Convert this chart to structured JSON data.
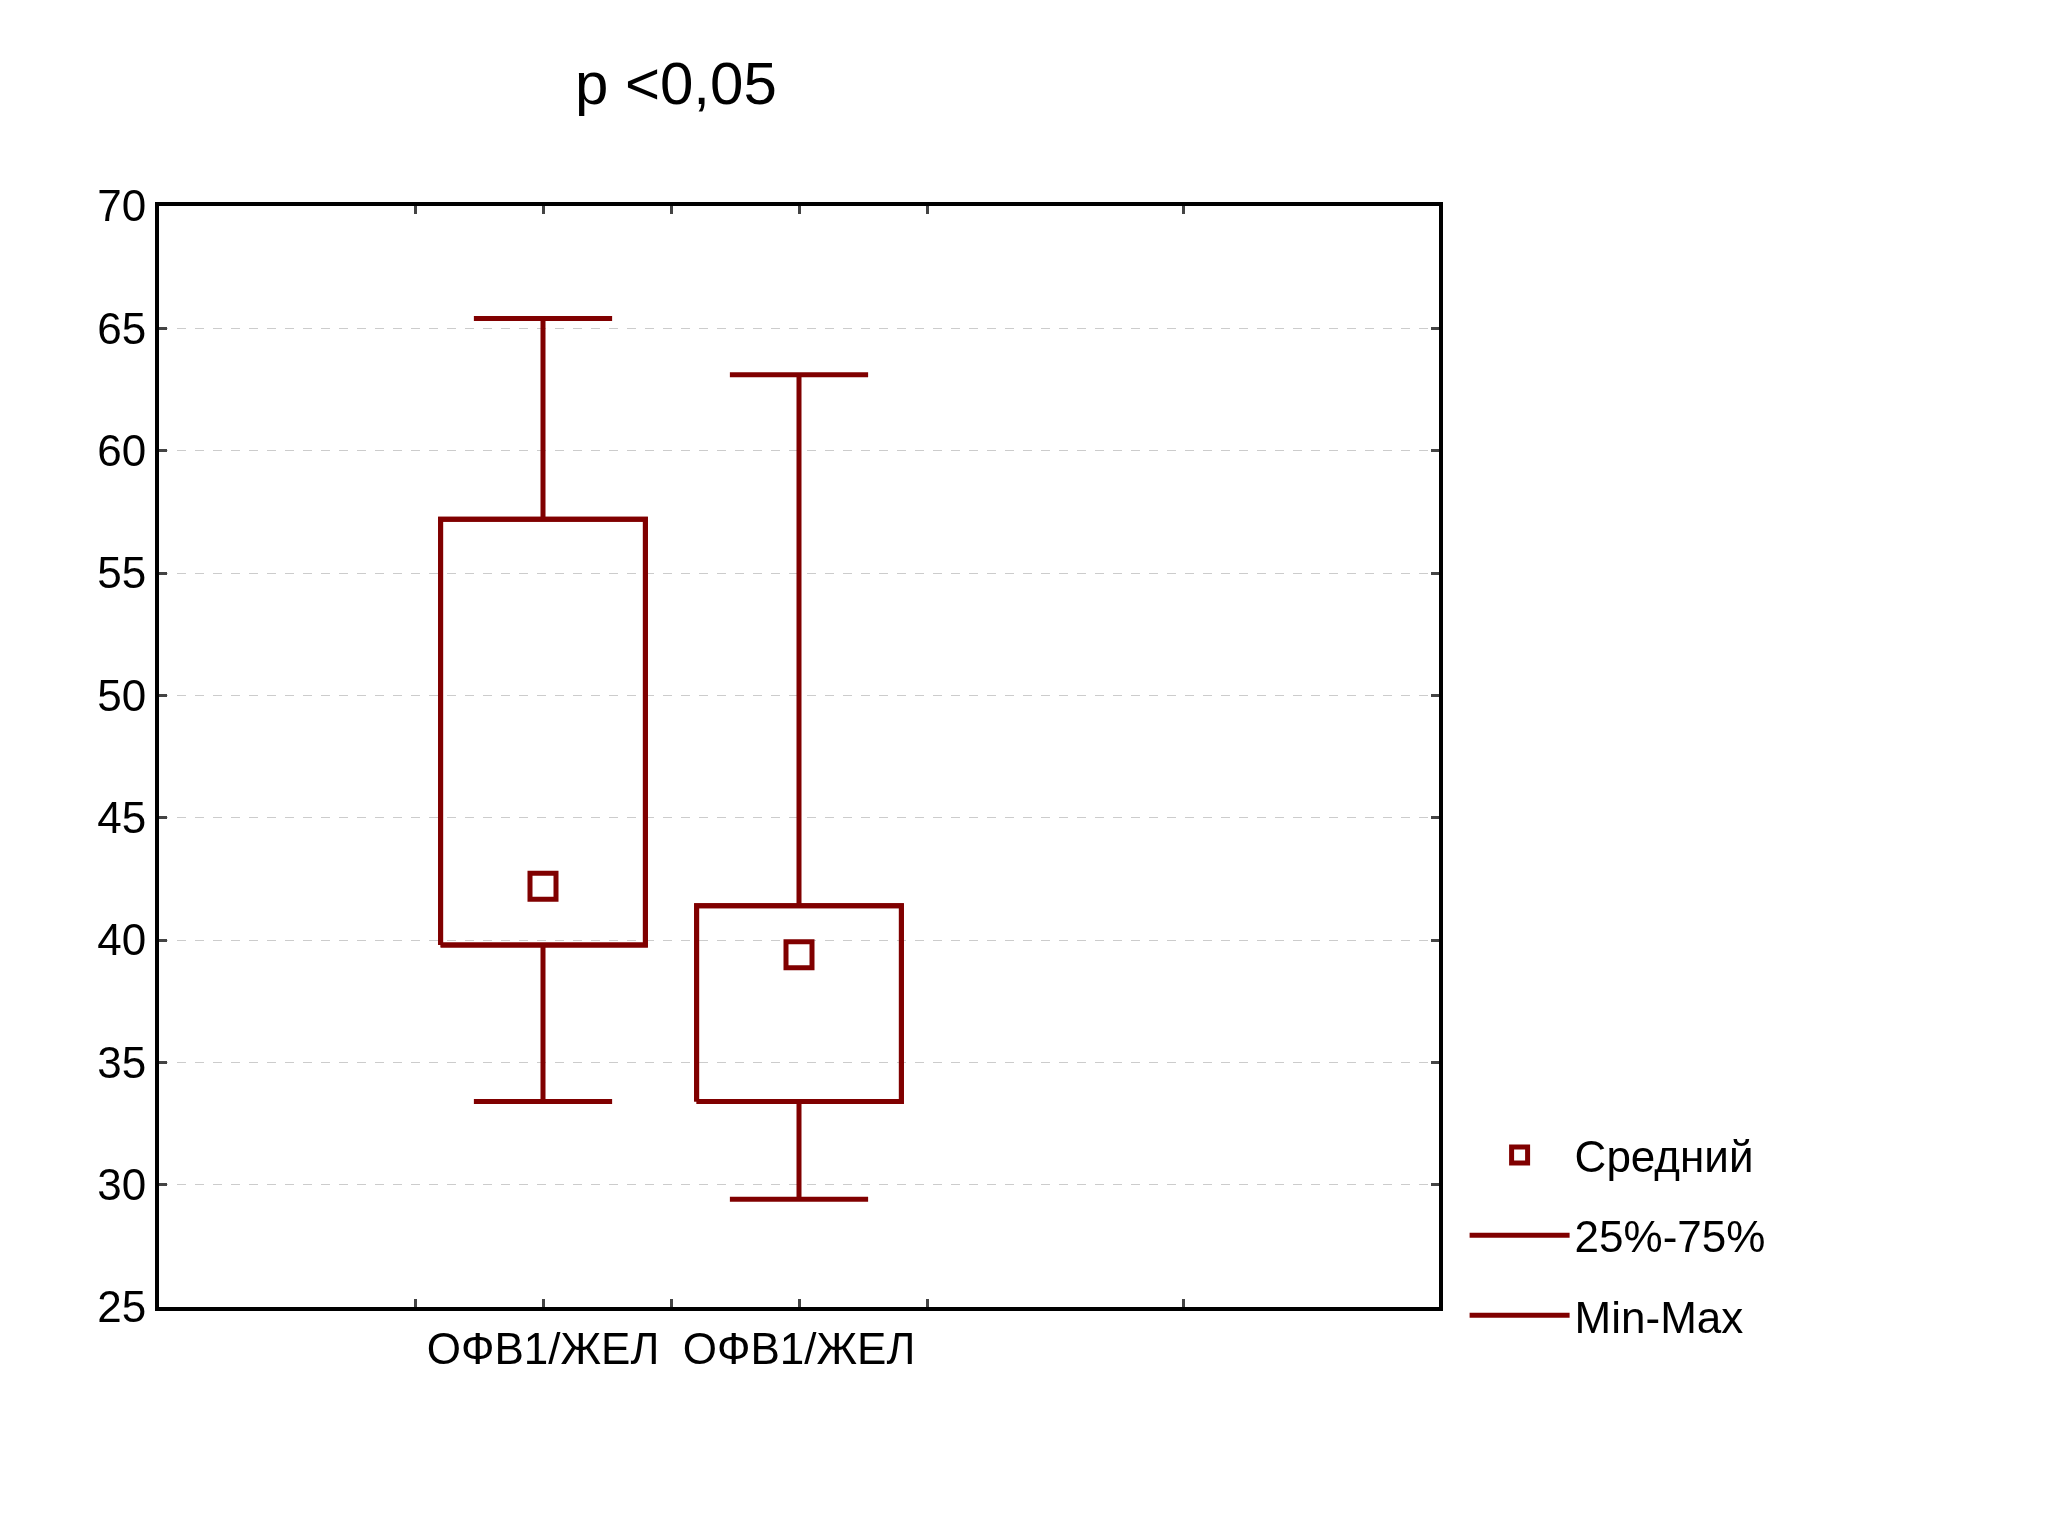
{
  "chart_data": {
    "type": "box",
    "title": "p <0,05",
    "categories": [
      null,
      "ОФВ1/ЖЕЛ",
      "ОФВ1/ЖЕЛ",
      null,
      null
    ],
    "series": [
      {
        "name": "Средний",
        "type": "scatter",
        "marker": "square",
        "color": "#800000",
        "values": [
          null,
          42.2,
          39.4,
          null,
          null
        ]
      },
      {
        "name": "25%-75%",
        "type": "box",
        "color": "#800000",
        "boxes": [
          null,
          {
            "q1": 39.8,
            "q3": 57.2
          },
          {
            "q1": 33.4,
            "q3": 41.4
          },
          null,
          null
        ]
      },
      {
        "name": "Min-Max",
        "type": "box",
        "color": "#800000",
        "boxes": [
          null,
          {
            "low": 33.4,
            "q1": 39.8,
            "q3": 57.2,
            "high": 65.4
          },
          {
            "low": 29.4,
            "q1": 33.4,
            "q3": 41.4,
            "high": 63.1
          },
          null,
          null
        ]
      }
    ],
    "ylim": [
      25,
      70
    ],
    "yticks": [
      25,
      30,
      35,
      40,
      45,
      50,
      55,
      60,
      65,
      70
    ],
    "grid": "y",
    "legend": "bottom right"
  }
}
